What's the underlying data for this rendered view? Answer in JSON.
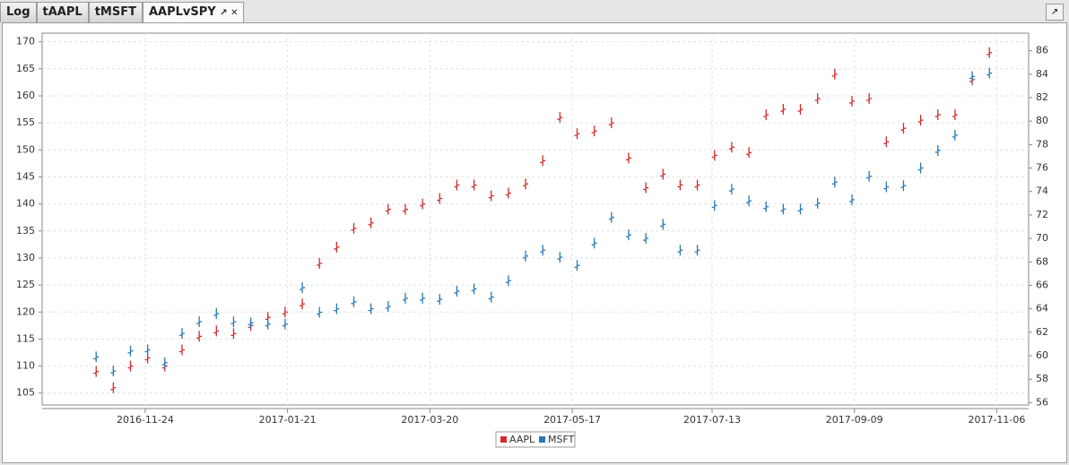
{
  "tabs": [
    "Log",
    "tAAPL",
    "tMSFT",
    "AAPLvSPY"
  ],
  "chart_data": {
    "type": "ohlc",
    "legend": "bottom",
    "grid": true,
    "x": [
      "2016-11-04",
      "2016-11-11",
      "2016-11-18",
      "2016-11-25",
      "2016-12-02",
      "2016-12-09",
      "2016-12-16",
      "2016-12-23",
      "2016-12-30",
      "2017-01-06",
      "2017-01-13",
      "2017-01-20",
      "2017-01-27",
      "2017-02-03",
      "2017-02-10",
      "2017-02-17",
      "2017-02-24",
      "2017-03-03",
      "2017-03-10",
      "2017-03-17",
      "2017-03-24",
      "2017-03-31",
      "2017-04-07",
      "2017-04-14",
      "2017-04-21",
      "2017-04-28",
      "2017-05-05",
      "2017-05-12",
      "2017-05-19",
      "2017-05-26",
      "2017-06-02",
      "2017-06-09",
      "2017-06-16",
      "2017-06-23",
      "2017-06-30",
      "2017-07-07",
      "2017-07-14",
      "2017-07-21",
      "2017-07-28",
      "2017-08-04",
      "2017-08-11",
      "2017-08-18",
      "2017-08-25",
      "2017-09-01",
      "2017-09-08",
      "2017-09-15",
      "2017-09-22",
      "2017-09-29",
      "2017-10-06",
      "2017-10-13",
      "2017-10-20",
      "2017-10-27",
      "2017-11-03"
    ],
    "xlim": [
      "2016-10-13",
      "2017-11-19"
    ],
    "xticks": [
      "2016-11-24",
      "2017-01-21",
      "2017-03-20",
      "2017-05-17",
      "2017-07-13",
      "2017-09-09",
      "2017-11-06"
    ],
    "ylim": [
      102.8,
      171.6
    ],
    "yticks": [
      105,
      110,
      115,
      120,
      125,
      130,
      135,
      140,
      145,
      150,
      155,
      160,
      165,
      170
    ],
    "y2lim": [
      55.8,
      87.5
    ],
    "y2ticks": [
      56,
      58,
      60,
      62,
      64,
      66,
      68,
      70,
      72,
      74,
      76,
      78,
      80,
      82,
      84,
      86
    ],
    "series": [
      {
        "name": "AAPL",
        "color": "#d42a2a",
        "values": [
          109,
          106,
          110,
          111.5,
          110,
          113,
          115.5,
          116.5,
          116,
          117.5,
          119,
          120,
          121.5,
          129,
          132,
          135.5,
          136.5,
          139,
          139,
          140,
          141,
          143.5,
          143.5,
          141.5,
          142,
          143.7,
          148,
          156,
          153,
          153.5,
          155,
          148.5,
          143,
          145.5,
          143.5,
          143.5,
          149,
          150.5,
          149.5,
          156.5,
          157.5,
          157.5,
          159.5,
          164,
          159,
          159.5,
          151.5,
          154,
          155.5,
          156.5,
          156.5,
          163,
          168
        ]
      },
      {
        "name": "MSFT",
        "color": "#2a78b5",
        "axis": "y2",
        "values": [
          59.9,
          58.7,
          60.4,
          60.5,
          59.4,
          61.9,
          62.9,
          63.6,
          62.9,
          62.8,
          62.7,
          62.7,
          65.8,
          63.7,
          64,
          64.6,
          64,
          64.2,
          64.9,
          64.9,
          64.8,
          65.5,
          65.7,
          65,
          66.4,
          68.5,
          69,
          68.4,
          67.7,
          69.6,
          71.8,
          70.3,
          70,
          71.2,
          69,
          69,
          72.8,
          74.2,
          73.2,
          72.7,
          72.5,
          72.5,
          73,
          74.8,
          73.3,
          75.3,
          74.4,
          74.5,
          76,
          77.5,
          78.8,
          83.8,
          84.1
        ]
      }
    ]
  }
}
